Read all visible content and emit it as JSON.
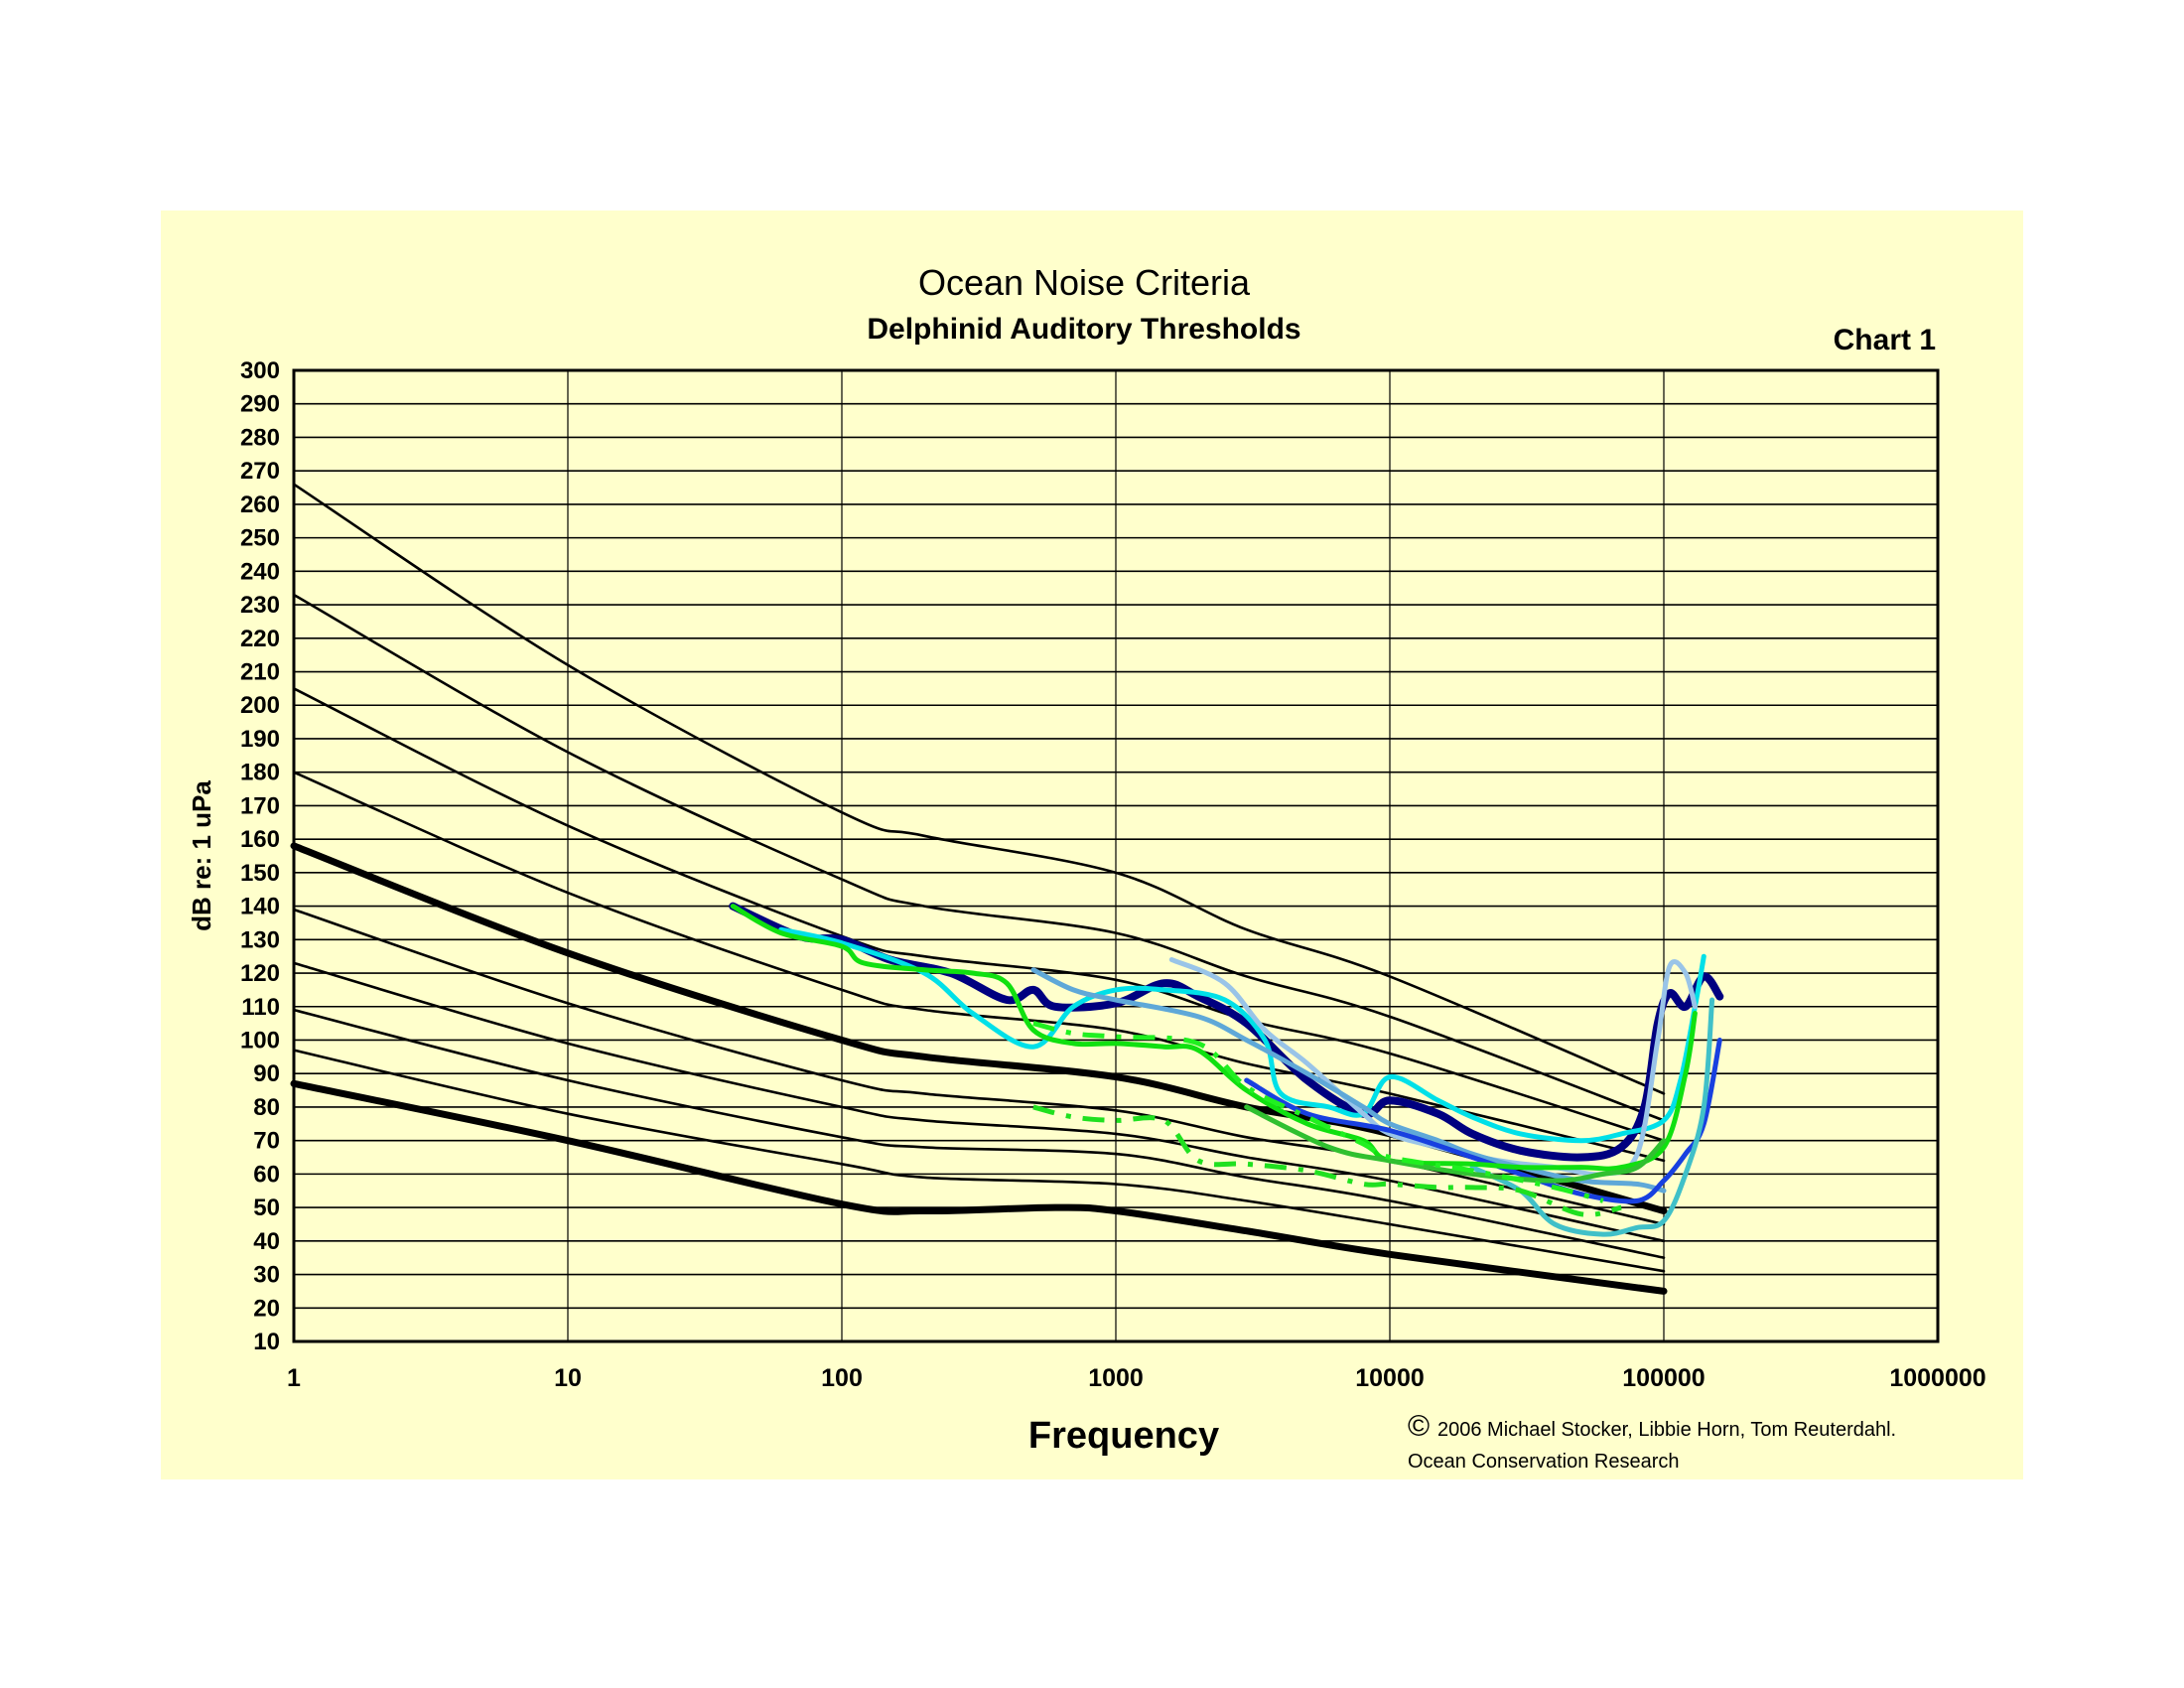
{
  "chart_data": {
    "type": "line",
    "title": "Ocean Noise Criteria",
    "subtitle": "Delphinid Auditory Thresholds",
    "chart_number": "Chart 1",
    "xlabel": "Frequency",
    "ylabel": "dB re: 1 uPa",
    "x_scale": "log",
    "xlim": [
      1,
      1000000
    ],
    "ylim": [
      10,
      300
    ],
    "x_ticks": [
      1,
      10,
      100,
      1000,
      10000,
      100000,
      1000000
    ],
    "x_tick_labels": [
      "1",
      "10",
      "100",
      "1000",
      "10000",
      "100000",
      "1000000"
    ],
    "y_ticks": [
      10,
      20,
      30,
      40,
      50,
      60,
      70,
      80,
      90,
      100,
      110,
      120,
      130,
      140,
      150,
      160,
      170,
      180,
      190,
      200,
      210,
      220,
      230,
      240,
      250,
      260,
      270,
      280,
      290,
      300
    ],
    "grid": true,
    "background_color": "#ffffcc",
    "credit": {
      "symbol": "©",
      "line1": "2006 Michael Stocker, Libbie Horn, Tom Reuterdahl.",
      "line2": "Ocean Conservation Research"
    },
    "criteria_curves": [
      {
        "weight": "thin",
        "points": [
          [
            1,
            266
          ],
          [
            10,
            212
          ],
          [
            100,
            168
          ],
          [
            200,
            161
          ],
          [
            1000,
            150
          ],
          [
            3000,
            133
          ],
          [
            10000,
            119
          ],
          [
            100000,
            84
          ]
        ]
      },
      {
        "weight": "thin",
        "points": [
          [
            1,
            233
          ],
          [
            10,
            186
          ],
          [
            100,
            148
          ],
          [
            200,
            140
          ],
          [
            1000,
            132
          ],
          [
            3000,
            119
          ],
          [
            10000,
            107
          ],
          [
            100000,
            76
          ]
        ]
      },
      {
        "weight": "thin",
        "points": [
          [
            1,
            205
          ],
          [
            10,
            164
          ],
          [
            100,
            131
          ],
          [
            200,
            125
          ],
          [
            1000,
            118
          ],
          [
            3000,
            106
          ],
          [
            10000,
            96
          ],
          [
            100000,
            70
          ]
        ]
      },
      {
        "weight": "thin",
        "points": [
          [
            1,
            180
          ],
          [
            10,
            144
          ],
          [
            100,
            115
          ],
          [
            200,
            109
          ],
          [
            1000,
            103
          ],
          [
            3000,
            93
          ],
          [
            10000,
            84
          ],
          [
            100000,
            64
          ]
        ]
      },
      {
        "weight": "thick",
        "points": [
          [
            1,
            158
          ],
          [
            10,
            126
          ],
          [
            100,
            100
          ],
          [
            200,
            95
          ],
          [
            1000,
            89
          ],
          [
            3000,
            80
          ],
          [
            10000,
            72
          ],
          [
            100000,
            49
          ]
        ]
      },
      {
        "weight": "thin",
        "points": [
          [
            1,
            139
          ],
          [
            10,
            111
          ],
          [
            100,
            88
          ],
          [
            200,
            84
          ],
          [
            1000,
            79
          ],
          [
            3000,
            71
          ],
          [
            10000,
            64
          ],
          [
            100000,
            45
          ]
        ]
      },
      {
        "weight": "thin",
        "points": [
          [
            1,
            123
          ],
          [
            10,
            99
          ],
          [
            100,
            80
          ],
          [
            200,
            76
          ],
          [
            1000,
            72
          ],
          [
            3000,
            65
          ],
          [
            10000,
            58
          ],
          [
            100000,
            40
          ]
        ]
      },
      {
        "weight": "thin",
        "points": [
          [
            1,
            109
          ],
          [
            10,
            88
          ],
          [
            100,
            71
          ],
          [
            200,
            68
          ],
          [
            1000,
            66
          ],
          [
            3000,
            59
          ],
          [
            10000,
            52
          ],
          [
            100000,
            35
          ]
        ]
      },
      {
        "weight": "thin",
        "points": [
          [
            1,
            97
          ],
          [
            10,
            78
          ],
          [
            100,
            63
          ],
          [
            200,
            59
          ],
          [
            1000,
            57
          ],
          [
            3000,
            52
          ],
          [
            10000,
            45
          ],
          [
            100000,
            31
          ]
        ]
      },
      {
        "weight": "thick",
        "points": [
          [
            1,
            87
          ],
          [
            10,
            70
          ],
          [
            100,
            51
          ],
          [
            200,
            49
          ],
          [
            600,
            50
          ],
          [
            1000,
            49
          ],
          [
            3000,
            43
          ],
          [
            10000,
            36
          ],
          [
            100000,
            25
          ]
        ]
      }
    ],
    "threshold_series": [
      {
        "color": "#000080",
        "width": "thick",
        "dash": "solid",
        "points": [
          [
            40,
            140
          ],
          [
            70,
            131
          ],
          [
            100,
            130
          ],
          [
            150,
            124
          ],
          [
            250,
            120
          ],
          [
            400,
            112
          ],
          [
            500,
            115
          ],
          [
            600,
            110
          ],
          [
            1000,
            111
          ],
          [
            1500,
            117
          ],
          [
            2000,
            113
          ],
          [
            3000,
            105
          ],
          [
            5000,
            88
          ],
          [
            8000,
            78
          ],
          [
            10000,
            82
          ],
          [
            15000,
            78
          ],
          [
            20000,
            72
          ],
          [
            30000,
            67
          ],
          [
            50000,
            65
          ],
          [
            70000,
            68
          ],
          [
            85000,
            80
          ],
          [
            95000,
            105
          ],
          [
            105000,
            114
          ],
          [
            120000,
            110
          ],
          [
            140000,
            119
          ],
          [
            160000,
            113
          ]
        ]
      },
      {
        "color": "#00e0e8",
        "width": "medium",
        "dash": "solid",
        "points": [
          [
            60,
            133
          ],
          [
            100,
            129
          ],
          [
            200,
            120
          ],
          [
            300,
            108
          ],
          [
            500,
            98
          ],
          [
            700,
            110
          ],
          [
            1000,
            115
          ],
          [
            1500,
            115
          ],
          [
            2500,
            112
          ],
          [
            3500,
            100
          ],
          [
            4000,
            84
          ],
          [
            6000,
            80
          ],
          [
            8000,
            78
          ],
          [
            10000,
            89
          ],
          [
            15000,
            82
          ],
          [
            20000,
            77
          ],
          [
            30000,
            72
          ],
          [
            50000,
            70
          ],
          [
            70000,
            72
          ],
          [
            100000,
            76
          ],
          [
            115000,
            88
          ],
          [
            130000,
            110
          ],
          [
            140000,
            125
          ]
        ]
      },
      {
        "color": "#99c4e8",
        "width": "medium",
        "dash": "solid",
        "points": [
          [
            1600,
            124
          ],
          [
            2500,
            117
          ],
          [
            3500,
            103
          ],
          [
            5000,
            93
          ],
          [
            8000,
            78
          ],
          [
            10000,
            72
          ],
          [
            15000,
            68
          ],
          [
            25000,
            64
          ],
          [
            40000,
            62
          ],
          [
            60000,
            60
          ],
          [
            80000,
            66
          ],
          [
            95000,
            100
          ],
          [
            105000,
            122
          ],
          [
            120000,
            120
          ],
          [
            130000,
            110
          ]
        ]
      },
      {
        "color": "#5fa8d8",
        "width": "medium",
        "dash": "solid",
        "points": [
          [
            500,
            121
          ],
          [
            700,
            115
          ],
          [
            1000,
            112
          ],
          [
            2000,
            107
          ],
          [
            3000,
            100
          ],
          [
            5000,
            90
          ],
          [
            8000,
            80
          ],
          [
            10000,
            75
          ],
          [
            15000,
            70
          ],
          [
            20000,
            66
          ],
          [
            30000,
            62
          ],
          [
            50000,
            58
          ],
          [
            80000,
            57
          ],
          [
            100000,
            55
          ]
        ]
      },
      {
        "color": "#1840e0",
        "width": "medium",
        "dash": "solid",
        "points": [
          [
            3000,
            88
          ],
          [
            5000,
            78
          ],
          [
            10000,
            73
          ],
          [
            20000,
            65
          ],
          [
            30000,
            60
          ],
          [
            50000,
            54
          ],
          [
            80000,
            52
          ],
          [
            100000,
            58
          ],
          [
            120000,
            66
          ],
          [
            140000,
            75
          ],
          [
            160000,
            100
          ]
        ]
      },
      {
        "color": "#40c0c8",
        "width": "medium",
        "dash": "solid",
        "points": [
          [
            20000,
            62
          ],
          [
            30000,
            55
          ],
          [
            40000,
            45
          ],
          [
            60000,
            42
          ],
          [
            80000,
            44
          ],
          [
            100000,
            46
          ],
          [
            120000,
            60
          ],
          [
            140000,
            80
          ],
          [
            150000,
            112
          ]
        ]
      },
      {
        "color": "#10e010",
        "width": "medium",
        "dash": "solid",
        "points": [
          [
            40,
            140
          ],
          [
            60,
            132
          ],
          [
            100,
            128
          ],
          [
            120,
            123
          ],
          [
            200,
            121
          ],
          [
            300,
            120
          ],
          [
            400,
            117
          ],
          [
            500,
            103
          ],
          [
            700,
            99
          ],
          [
            1000,
            99
          ],
          [
            1500,
            98
          ],
          [
            2000,
            97
          ],
          [
            3000,
            85
          ],
          [
            5000,
            75
          ],
          [
            8000,
            70
          ],
          [
            10000,
            64
          ],
          [
            20000,
            63
          ],
          [
            30000,
            62
          ],
          [
            50000,
            62
          ],
          [
            70000,
            62
          ],
          [
            100000,
            68
          ],
          [
            120000,
            90
          ],
          [
            130000,
            108
          ]
        ]
      },
      {
        "color": "#30c030",
        "width": "medium",
        "dash": "solid",
        "points": [
          [
            3000,
            80
          ],
          [
            6000,
            68
          ],
          [
            10000,
            64
          ],
          [
            20000,
            60
          ],
          [
            40000,
            58
          ],
          [
            60000,
            60
          ],
          [
            80000,
            62
          ],
          [
            100000,
            70
          ]
        ]
      },
      {
        "color": "#20f020",
        "width": "medium",
        "dash": "dashdot",
        "points": [
          [
            500,
            105
          ],
          [
            700,
            102
          ],
          [
            1000,
            101
          ],
          [
            2000,
            99
          ],
          [
            3000,
            86
          ],
          [
            5000,
            77
          ],
          [
            8000,
            69
          ],
          [
            10000,
            65
          ],
          [
            20000,
            61
          ],
          [
            40000,
            56
          ],
          [
            60000,
            52
          ]
        ]
      },
      {
        "color": "#20e020",
        "width": "medium",
        "dash": "dashdot",
        "points": [
          [
            500,
            80
          ],
          [
            700,
            77
          ],
          [
            1000,
            76
          ],
          [
            1500,
            76
          ],
          [
            2000,
            64
          ],
          [
            3000,
            63
          ],
          [
            5000,
            61
          ],
          [
            8000,
            57
          ],
          [
            10000,
            57
          ],
          [
            15000,
            56
          ],
          [
            20000,
            56
          ],
          [
            30000,
            55
          ],
          [
            50000,
            48
          ],
          [
            70000,
            50
          ]
        ]
      }
    ]
  }
}
